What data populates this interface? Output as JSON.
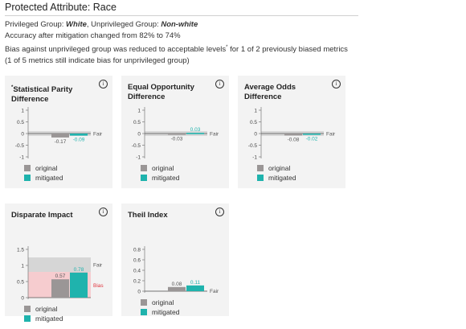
{
  "header": {
    "title": "Protected Attribute: Race",
    "privileged_label": "Privileged Group: ",
    "privileged_value": "White",
    "unprivileged_label": ", Unprivileged Group: ",
    "unprivileged_value": "Non-white",
    "accuracy": "Accuracy after mitigation changed from 82% to 74%",
    "bias_line_a": "Bias against unprivileged group was reduced to acceptable levels",
    "bias_line_mark": "*",
    "bias_line_b": " for 1 of 2 previously biased metrics",
    "bias_line_2": "(1 of 5 metrics still indicate bias for unprivileged group)"
  },
  "legend": {
    "original": "original",
    "mitigated": "mitigated"
  },
  "info_glyph": "i",
  "colors": {
    "original": "#9a9696",
    "mitigated": "#1fb3ad",
    "bias_band": "#f6cccf",
    "bias_text": "#e0363f",
    "fair_band": "#d6d6d6"
  },
  "chart_data": [
    {
      "type": "bar",
      "title_mark": "*",
      "title": "Statistical Parity Difference",
      "series": [
        {
          "name": "original",
          "values": [
            -0.17
          ]
        },
        {
          "name": "mitigated",
          "values": [
            -0.09
          ]
        }
      ],
      "data_labels": [
        "-0.17",
        "-0.09"
      ],
      "ylim": [
        -1,
        1
      ],
      "yticks": [
        "1",
        "0.5",
        "0",
        "-0.5",
        "-1"
      ],
      "yticks_values": [
        1,
        0.5,
        0,
        -0.5,
        -1
      ],
      "fair_label": "Fair",
      "fair_band": [
        -0.1,
        0.1
      ]
    },
    {
      "type": "bar",
      "title": "Equal Opportunity Difference",
      "series": [
        {
          "name": "original",
          "values": [
            -0.03
          ]
        },
        {
          "name": "mitigated",
          "values": [
            0.03
          ]
        }
      ],
      "data_labels": [
        "-0.03",
        "0.03"
      ],
      "ylim": [
        -1,
        1
      ],
      "yticks": [
        "1",
        "0.5",
        "0",
        "-0.5",
        "-1"
      ],
      "yticks_values": [
        1,
        0.5,
        0,
        -0.5,
        -1
      ],
      "fair_label": "Fair",
      "fair_band": [
        -0.1,
        0.1
      ]
    },
    {
      "type": "bar",
      "title": "Average Odds Difference",
      "series": [
        {
          "name": "original",
          "values": [
            -0.08
          ]
        },
        {
          "name": "mitigated",
          "values": [
            -0.02
          ]
        }
      ],
      "data_labels": [
        "-0.08",
        "-0.02"
      ],
      "ylim": [
        -1,
        1
      ],
      "yticks": [
        "1",
        "0.5",
        "0",
        "-0.5",
        "-1"
      ],
      "yticks_values": [
        1,
        0.5,
        0,
        -0.5,
        -1
      ],
      "fair_label": "Fair",
      "fair_band": [
        -0.1,
        0.1
      ]
    },
    {
      "type": "bar",
      "title": "Disparate Impact",
      "series": [
        {
          "name": "original",
          "values": [
            0.57
          ]
        },
        {
          "name": "mitigated",
          "values": [
            0.78
          ]
        }
      ],
      "data_labels": [
        "0.57",
        "0.78"
      ],
      "ylim": [
        0,
        1.5
      ],
      "yticks": [
        "1.5",
        "1",
        "0.5",
        "0"
      ],
      "yticks_values": [
        1.5,
        1,
        0.5,
        0
      ],
      "fair_label": "Fair",
      "fair_band": [
        0.8,
        1.25
      ],
      "bias_label": "Bias",
      "bias_band": [
        0,
        0.8
      ]
    },
    {
      "type": "bar",
      "title": "Theil Index",
      "series": [
        {
          "name": "original",
          "values": [
            0.08
          ]
        },
        {
          "name": "mitigated",
          "values": [
            0.11
          ]
        }
      ],
      "data_labels": [
        "0.08",
        "0.11"
      ],
      "ylim": [
        0,
        0.8
      ],
      "yticks": [
        "0.8",
        "0.6",
        "0.4",
        "0.2",
        "0"
      ],
      "yticks_values": [
        0.8,
        0.6,
        0.4,
        0.2,
        0
      ],
      "fair_label": "Fair",
      "fair_band": [
        0,
        0.01
      ]
    }
  ]
}
